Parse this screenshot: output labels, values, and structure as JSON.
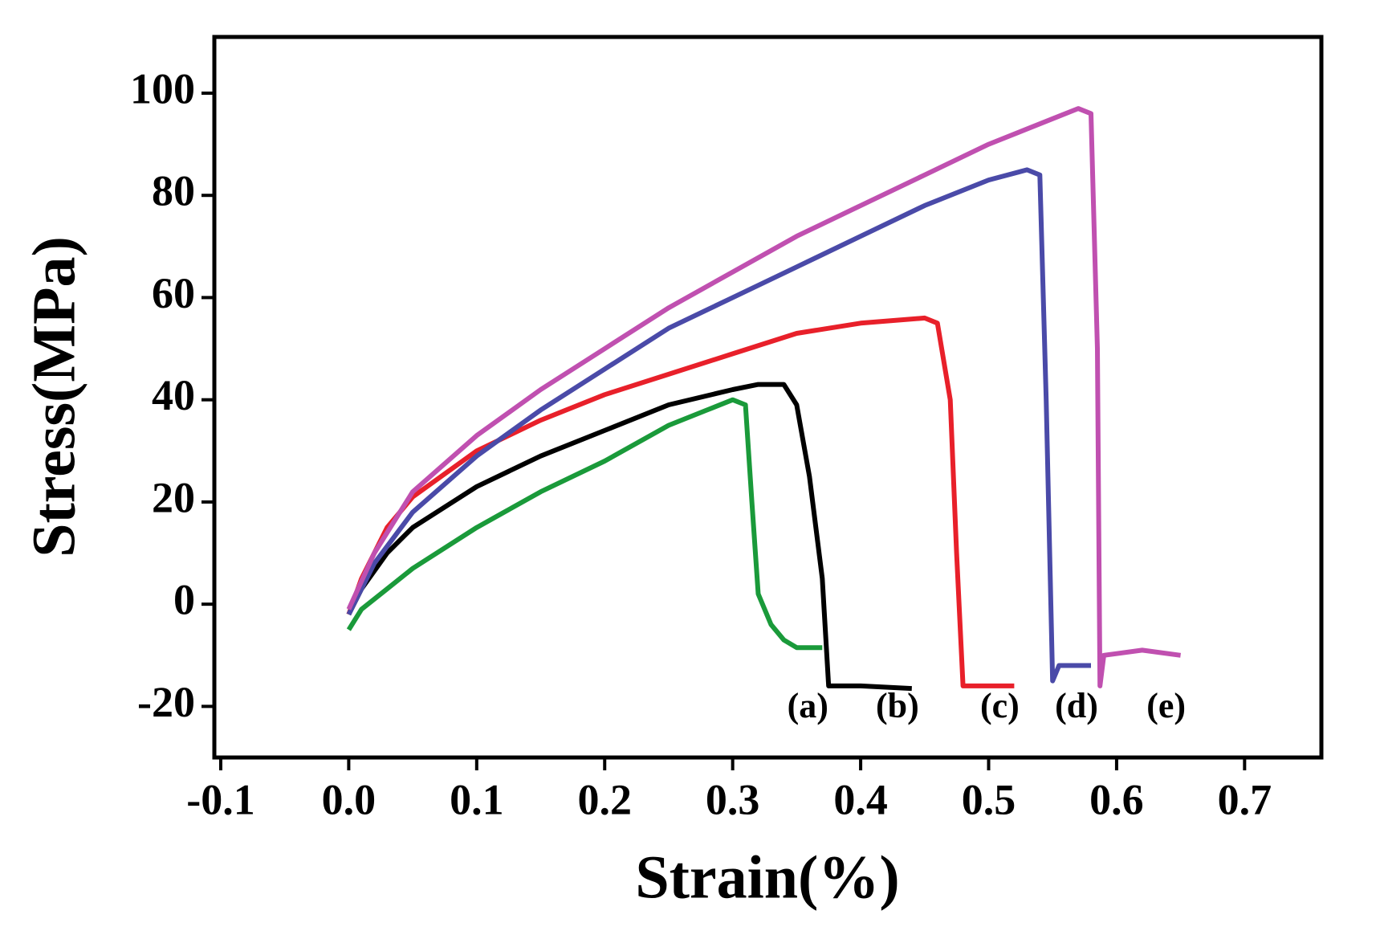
{
  "chart_data": {
    "type": "line",
    "x_label": "Strain(%)",
    "y_label": "Stress(MPa)",
    "xlim": [
      -0.105,
      0.76
    ],
    "ylim": [
      -30,
      111
    ],
    "xticks": [
      -0.1,
      {
        "value": 0,
        "label": "0.0"
      },
      0.1,
      0.2,
      0.3,
      0.4,
      0.5,
      0.6,
      0.7
    ],
    "yticks": [
      -20,
      0,
      20,
      40,
      60,
      80,
      100
    ],
    "series": [
      {
        "name": "(a)",
        "color": "#1a9a3a",
        "x": [
          0,
          0.01,
          0.03,
          0.05,
          0.1,
          0.15,
          0.2,
          0.25,
          0.28,
          0.3,
          0.31,
          0.315,
          0.32,
          0.33,
          0.34,
          0.35,
          0.37
        ],
        "values": [
          -5,
          -1,
          3,
          7,
          15,
          22,
          28,
          35,
          38,
          40,
          39,
          20,
          2,
          -4,
          -7,
          -8.5,
          -8.5
        ]
      },
      {
        "name": "(b)",
        "color": "#000000",
        "x": [
          0,
          0.01,
          0.03,
          0.05,
          0.1,
          0.15,
          0.2,
          0.25,
          0.3,
          0.32,
          0.34,
          0.35,
          0.36,
          0.37,
          0.375,
          0.4,
          0.44
        ],
        "values": [
          -2,
          3,
          10,
          15,
          23,
          29,
          34,
          39,
          42,
          43,
          43,
          39,
          25,
          5,
          -16,
          -16,
          -16.5
        ]
      },
      {
        "name": "(c)",
        "color": "#e8202a",
        "x": [
          0,
          0.01,
          0.03,
          0.05,
          0.1,
          0.15,
          0.2,
          0.25,
          0.3,
          0.35,
          0.4,
          0.45,
          0.46,
          0.47,
          0.475,
          0.48,
          0.5,
          0.52
        ],
        "values": [
          -2,
          5,
          15,
          21,
          30,
          36,
          41,
          45,
          49,
          53,
          55,
          56,
          55,
          40,
          10,
          -16,
          -16,
          -16
        ]
      },
      {
        "name": "(d)",
        "color": "#4a4aa8",
        "x": [
          0,
          0.02,
          0.05,
          0.1,
          0.15,
          0.2,
          0.25,
          0.3,
          0.35,
          0.4,
          0.45,
          0.5,
          0.53,
          0.54,
          0.545,
          0.55,
          0.555,
          0.58
        ],
        "values": [
          -2,
          8,
          18,
          29,
          38,
          46,
          54,
          60,
          66,
          72,
          78,
          83,
          85,
          84,
          40,
          -15,
          -12,
          -12
        ]
      },
      {
        "name": "(e)",
        "color": "#c050b0",
        "x": [
          0,
          0.02,
          0.05,
          0.1,
          0.15,
          0.2,
          0.25,
          0.3,
          0.35,
          0.4,
          0.45,
          0.5,
          0.55,
          0.57,
          0.58,
          0.585,
          0.587,
          0.59,
          0.62,
          0.65
        ],
        "values": [
          -1,
          10,
          22,
          33,
          42,
          50,
          58,
          65,
          72,
          78,
          84,
          90,
          95,
          97,
          96,
          50,
          -16,
          -10,
          -9,
          -10
        ]
      }
    ]
  }
}
